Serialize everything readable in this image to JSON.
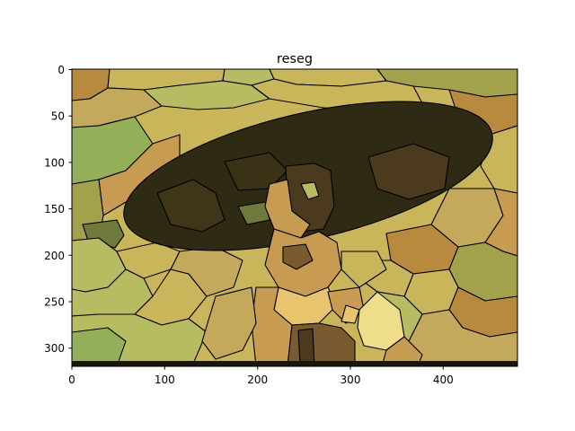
{
  "figure": {
    "title": "reseg"
  },
  "axes": {
    "x_ticks": [
      {
        "value": 0,
        "label": "0"
      },
      {
        "value": 100,
        "label": "100"
      },
      {
        "value": 200,
        "label": "200"
      },
      {
        "value": 300,
        "label": "300"
      },
      {
        "value": 400,
        "label": "400"
      }
    ],
    "y_ticks": [
      {
        "value": 0,
        "label": "0"
      },
      {
        "value": 50,
        "label": "50"
      },
      {
        "value": 100,
        "label": "100"
      },
      {
        "value": 150,
        "label": "150"
      },
      {
        "value": 200,
        "label": "200"
      },
      {
        "value": 250,
        "label": "250"
      },
      {
        "value": 300,
        "label": "300"
      }
    ],
    "x_range": [
      0,
      480
    ],
    "y_range": [
      320,
      0
    ]
  },
  "image": {
    "description_icon": "segmented-photo",
    "palette": {
      "background": "#c9b55a",
      "olive_light": "#b7bc62",
      "olive": "#a3a14c",
      "green": "#93b058",
      "dark_green": "#6f7a3c",
      "tan": "#c79b52",
      "ochre": "#b88a3e",
      "brown": "#7a5a2f",
      "dark_brown": "#4b3a1d",
      "umbrella": "#2f2a14",
      "skin": "#e8c46e",
      "pale": "#eedd8a",
      "mid": "#c4a85b"
    }
  }
}
